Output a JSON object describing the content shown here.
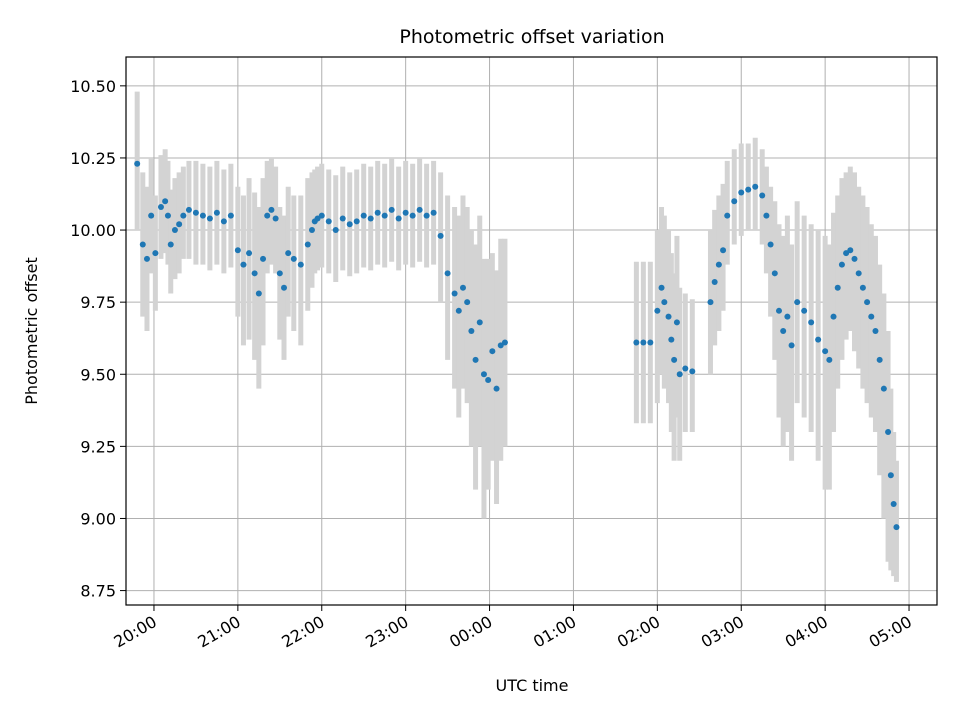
{
  "chart_data": {
    "type": "scatter",
    "title": "Photometric offset variation",
    "xlabel": "UTC time",
    "ylabel": "Photometric offset",
    "x_unit": "hours (UTC, continuing past midnight)",
    "xlim": [
      "19:40",
      "05:20"
    ],
    "ylim": [
      8.7,
      10.6
    ],
    "grid": true,
    "legend": false,
    "colors": {
      "points": "#1f77b4",
      "errorbars": "#d3d3d3",
      "grid": "#b0b0b0"
    },
    "x_ticks": [
      "20:00",
      "21:00",
      "22:00",
      "23:00",
      "00:00",
      "01:00",
      "02:00",
      "03:00",
      "04:00",
      "05:00"
    ],
    "y_ticks": [
      "8.75",
      "9.00",
      "9.25",
      "9.50",
      "9.75",
      "10.00",
      "10.25",
      "10.50"
    ],
    "series": [
      {
        "x": [
          "19:48",
          "19:52",
          "19:55",
          "19:58",
          "20:01",
          "20:05",
          "20:08",
          "20:10",
          "20:12",
          "20:15",
          "20:18",
          "20:21",
          "20:25",
          "20:30",
          "20:35",
          "20:40",
          "20:45",
          "20:50",
          "20:55",
          "21:00",
          "21:04",
          "21:08",
          "21:12",
          "21:15",
          "21:18",
          "21:21",
          "21:24",
          "21:27",
          "21:30",
          "21:33",
          "21:36",
          "21:40",
          "21:45",
          "21:50",
          "21:53",
          "21:55",
          "21:57",
          "22:00",
          "22:05",
          "22:10",
          "22:15",
          "22:20",
          "22:25",
          "22:30",
          "22:35",
          "22:40",
          "22:45",
          "22:50",
          "22:55",
          "23:00",
          "23:05",
          "23:10",
          "23:15",
          "23:20",
          "23:25",
          "23:30",
          "23:35",
          "23:38",
          "23:41",
          "23:44",
          "23:47",
          "23:50",
          "23:53",
          "23:56",
          "23:59",
          "00:02",
          "00:05",
          "00:08",
          "00:11",
          "01:45",
          "01:50",
          "01:55",
          "02:00",
          "02:03",
          "02:05",
          "02:08",
          "02:10",
          "02:12",
          "02:14",
          "02:16",
          "02:20",
          "02:25",
          "02:38",
          "02:41",
          "02:44",
          "02:47",
          "02:50",
          "02:55",
          "03:00",
          "03:05",
          "03:10",
          "03:15",
          "03:18",
          "03:21",
          "03:24",
          "03:27",
          "03:30",
          "03:33",
          "03:36",
          "03:40",
          "03:45",
          "03:50",
          "03:55",
          "04:00",
          "04:03",
          "04:06",
          "04:09",
          "04:12",
          "04:15",
          "04:18",
          "04:21",
          "04:24",
          "04:27",
          "04:30",
          "04:33",
          "04:36",
          "04:39",
          "04:42",
          "04:45",
          "04:47",
          "04:49",
          "04:51"
        ],
        "y": [
          10.23,
          9.95,
          9.9,
          10.05,
          9.92,
          10.08,
          10.1,
          10.05,
          9.95,
          10.0,
          10.02,
          10.05,
          10.07,
          10.06,
          10.05,
          10.04,
          10.06,
          10.03,
          10.05,
          9.93,
          9.88,
          9.92,
          9.85,
          9.78,
          9.9,
          10.05,
          10.07,
          10.04,
          9.85,
          9.8,
          9.92,
          9.9,
          9.88,
          9.95,
          10.0,
          10.03,
          10.04,
          10.05,
          10.03,
          10.0,
          10.04,
          10.02,
          10.03,
          10.05,
          10.04,
          10.06,
          10.05,
          10.07,
          10.04,
          10.06,
          10.05,
          10.07,
          10.05,
          10.06,
          9.98,
          9.85,
          9.78,
          9.72,
          9.8,
          9.75,
          9.65,
          9.55,
          9.68,
          9.5,
          9.48,
          9.58,
          9.45,
          9.6,
          9.61,
          9.61,
          9.61,
          9.61,
          9.72,
          9.8,
          9.75,
          9.7,
          9.62,
          9.55,
          9.68,
          9.5,
          9.52,
          9.51,
          9.75,
          9.82,
          9.88,
          9.93,
          10.05,
          10.1,
          10.13,
          10.14,
          10.15,
          10.12,
          10.05,
          9.95,
          9.85,
          9.72,
          9.65,
          9.7,
          9.6,
          9.75,
          9.72,
          9.68,
          9.62,
          9.58,
          9.55,
          9.7,
          9.8,
          9.88,
          9.92,
          9.93,
          9.9,
          9.85,
          9.8,
          9.75,
          9.7,
          9.65,
          9.55,
          9.45,
          9.3,
          9.15,
          9.05,
          8.97
        ],
        "err_low": [
          10.0,
          9.7,
          9.65,
          9.85,
          9.72,
          9.9,
          9.92,
          9.88,
          9.78,
          9.83,
          9.85,
          9.9,
          9.9,
          9.88,
          9.88,
          9.86,
          9.88,
          9.85,
          9.87,
          9.7,
          9.6,
          9.62,
          9.55,
          9.45,
          9.6,
          9.85,
          9.88,
          9.85,
          9.62,
          9.55,
          9.7,
          9.65,
          9.6,
          9.72,
          9.8,
          9.85,
          9.86,
          9.87,
          9.85,
          9.82,
          9.86,
          9.84,
          9.85,
          9.87,
          9.86,
          9.88,
          9.87,
          9.89,
          9.86,
          9.88,
          9.87,
          9.89,
          9.87,
          9.88,
          9.75,
          9.55,
          9.45,
          9.35,
          9.45,
          9.4,
          9.25,
          9.1,
          9.25,
          9.0,
          9.1,
          9.2,
          9.05,
          9.2,
          9.25,
          9.33,
          9.33,
          9.33,
          9.4,
          9.5,
          9.45,
          9.4,
          9.3,
          9.2,
          9.35,
          9.2,
          9.3,
          9.3,
          9.5,
          9.6,
          9.65,
          9.72,
          9.88,
          9.95,
          9.98,
          10.0,
          10.0,
          9.95,
          9.85,
          9.7,
          9.55,
          9.35,
          9.25,
          9.3,
          9.2,
          9.4,
          9.35,
          9.3,
          9.2,
          9.1,
          9.1,
          9.3,
          9.45,
          9.55,
          9.62,
          9.65,
          9.58,
          9.52,
          9.45,
          9.4,
          9.35,
          9.3,
          9.15,
          9.0,
          8.85,
          8.82,
          8.8,
          8.78
        ],
        "err_high": [
          10.48,
          10.2,
          10.15,
          10.25,
          10.12,
          10.26,
          10.28,
          10.24,
          10.14,
          10.18,
          10.2,
          10.22,
          10.24,
          10.24,
          10.23,
          10.22,
          10.24,
          10.21,
          10.23,
          10.15,
          10.12,
          10.18,
          10.13,
          10.08,
          10.18,
          10.24,
          10.25,
          10.22,
          10.08,
          10.05,
          10.15,
          10.12,
          10.12,
          10.18,
          10.2,
          10.21,
          10.22,
          10.23,
          10.21,
          10.19,
          10.22,
          10.2,
          10.21,
          10.23,
          10.22,
          10.24,
          10.23,
          10.25,
          10.22,
          10.24,
          10.23,
          10.25,
          10.23,
          10.24,
          10.2,
          10.12,
          10.08,
          10.05,
          10.12,
          10.08,
          10.0,
          9.95,
          10.05,
          9.9,
          9.9,
          9.92,
          9.86,
          9.97,
          9.97,
          9.89,
          9.89,
          9.89,
          10.0,
          10.08,
          10.05,
          10.0,
          9.92,
          9.85,
          9.98,
          9.8,
          9.78,
          9.76,
          10.0,
          10.07,
          10.12,
          10.16,
          10.24,
          10.28,
          10.3,
          10.3,
          10.32,
          10.28,
          10.22,
          10.15,
          10.1,
          10.02,
          9.98,
          10.05,
          9.95,
          10.1,
          10.05,
          10.02,
          10.0,
          9.98,
          9.95,
          10.06,
          10.12,
          10.18,
          10.2,
          10.22,
          10.2,
          10.15,
          10.12,
          10.08,
          10.02,
          9.98,
          9.88,
          9.78,
          9.65,
          9.45,
          9.3,
          9.2
        ]
      }
    ]
  }
}
